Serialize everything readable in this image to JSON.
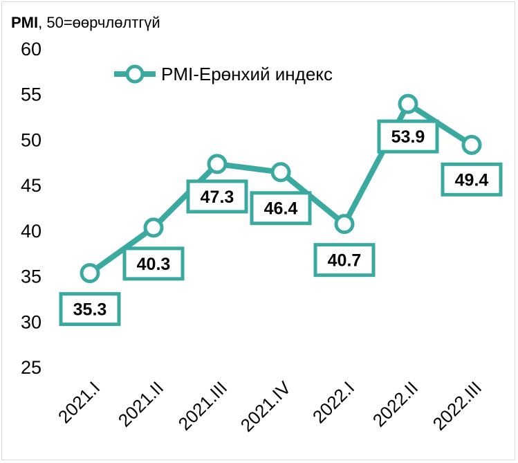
{
  "chart_data": {
    "type": "line",
    "unit_title_bold": "PMI",
    "unit_title_rest": ", 50=өөрчлөлтгүй",
    "categories": [
      "2021.I",
      "2021.II",
      "2021.III",
      "2021.IV",
      "2022.I",
      "2022.II",
      "2022.III"
    ],
    "series": [
      {
        "name": "PMI-Ерөнхий индекс",
        "values": [
          35.3,
          40.3,
          47.3,
          46.4,
          40.7,
          53.9,
          49.4
        ],
        "labels": [
          "35.3",
          "40.3",
          "47.3",
          "46.4",
          "40.7",
          "53.9",
          "49.4"
        ],
        "color": "#3aa99f"
      }
    ],
    "ylim": [
      25,
      60
    ],
    "yticks": [
      "25",
      "30",
      "35",
      "40",
      "45",
      "50",
      "55",
      "60"
    ],
    "grid": false,
    "legend_position": "top"
  }
}
